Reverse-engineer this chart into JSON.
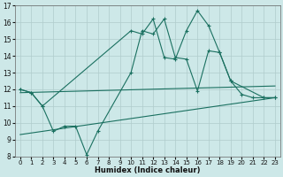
{
  "xlabel": "Humidex (Indice chaleur)",
  "xlim": [
    -0.5,
    23.5
  ],
  "ylim": [
    8,
    17
  ],
  "yticks": [
    8,
    9,
    10,
    11,
    12,
    13,
    14,
    15,
    16,
    17
  ],
  "xticks": [
    0,
    1,
    2,
    3,
    4,
    5,
    6,
    7,
    8,
    9,
    10,
    11,
    12,
    13,
    14,
    15,
    16,
    17,
    18,
    19,
    20,
    21,
    22,
    23
  ],
  "bg_color": "#cde8e8",
  "grid_color": "#b0cccc",
  "line_color": "#1a7060",
  "line_upper_x": [
    0,
    1,
    2,
    10,
    11,
    12,
    13,
    14,
    15,
    16,
    17,
    18,
    19,
    22,
    23
  ],
  "line_upper_y": [
    12.0,
    11.8,
    11.0,
    15.5,
    15.3,
    16.2,
    13.9,
    13.8,
    15.5,
    16.7,
    15.8,
    14.2,
    12.5,
    11.5,
    11.5
  ],
  "line_lower_x": [
    0,
    1,
    2,
    3,
    4,
    5,
    6,
    7,
    10,
    11,
    12,
    13,
    14,
    15,
    16,
    17,
    18,
    19,
    20,
    21,
    22,
    23
  ],
  "line_lower_y": [
    12.0,
    11.8,
    11.0,
    9.5,
    9.8,
    9.8,
    8.1,
    9.5,
    13.0,
    15.5,
    15.3,
    16.2,
    13.9,
    13.8,
    11.9,
    14.3,
    14.2,
    12.5,
    11.7,
    11.5,
    11.5,
    11.5
  ],
  "line_trend1_x": [
    0,
    23
  ],
  "line_trend1_y": [
    11.8,
    12.2
  ],
  "line_trend2_x": [
    0,
    23
  ],
  "line_trend2_y": [
    9.3,
    11.5
  ]
}
